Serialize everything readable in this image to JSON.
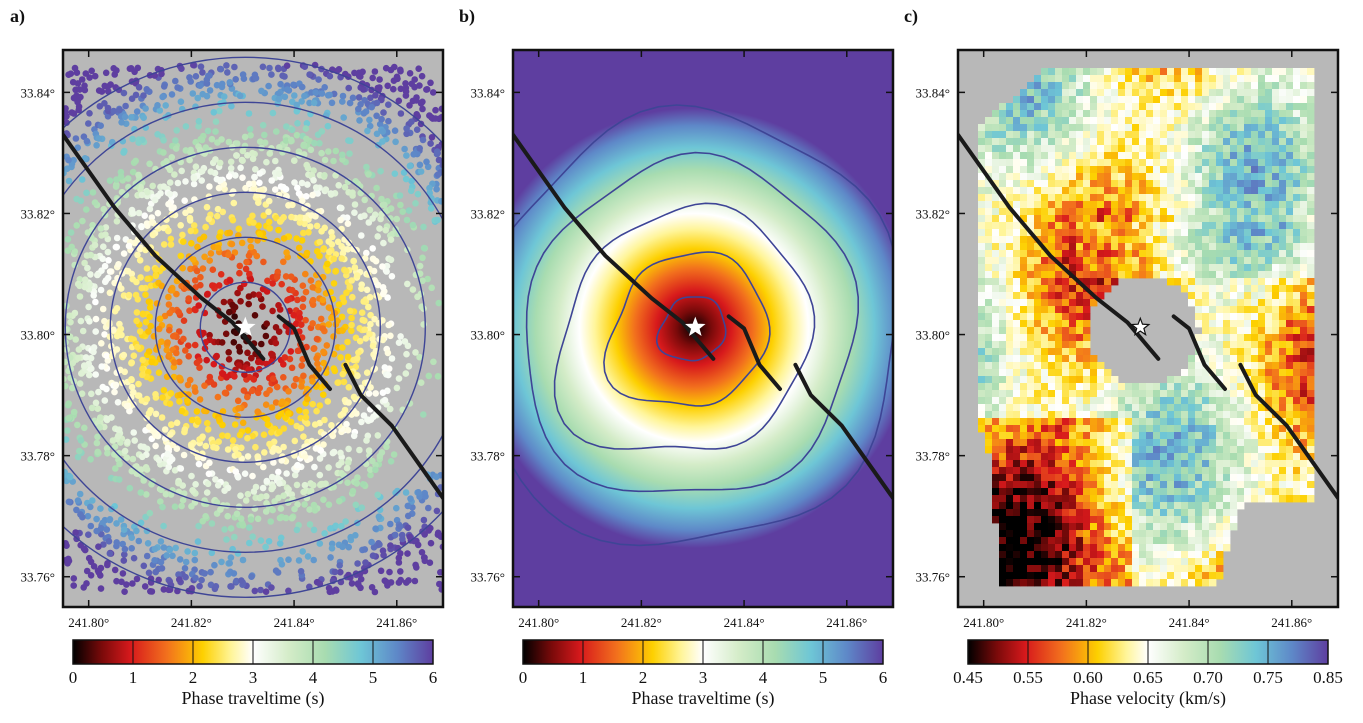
{
  "chart_data": [
    {
      "panel_label": "a)",
      "type": "scatter",
      "description_kind": "station phase traveltime picks",
      "x_ticks": [
        "241.80°",
        "241.82°",
        "241.84°",
        "241.86°"
      ],
      "y_ticks": [
        "33.76°",
        "33.78°",
        "33.80°",
        "33.82°",
        "33.84°"
      ],
      "x_tick_values": [
        241.8,
        241.82,
        241.84,
        241.86
      ],
      "y_tick_values": [
        33.76,
        33.78,
        33.8,
        33.82,
        33.84
      ],
      "xlim": [
        241.795,
        241.869
      ],
      "ylim": [
        33.755,
        33.847
      ],
      "source_lon": 241.8305,
      "source_lat": 33.8012,
      "circle_radii_s": [
        1,
        2,
        3,
        4,
        5,
        6
      ],
      "colorbar": {
        "label": "Phase traveltime (s)",
        "ticks": [
          "0",
          "1",
          "2",
          "3",
          "4",
          "5",
          "6"
        ],
        "min": 0,
        "max": 6
      }
    },
    {
      "panel_label": "b)",
      "type": "heatmap",
      "description_kind": "interpolated phase traveltime field",
      "x_ticks": [
        "241.80°",
        "241.82°",
        "241.84°",
        "241.86°"
      ],
      "y_ticks": [
        "33.76°",
        "33.78°",
        "33.80°",
        "33.82°",
        "33.84°"
      ],
      "x_tick_values": [
        241.8,
        241.82,
        241.84,
        241.86
      ],
      "y_tick_values": [
        33.76,
        33.78,
        33.8,
        33.82,
        33.84
      ],
      "xlim": [
        241.795,
        241.869
      ],
      "ylim": [
        33.755,
        33.847
      ],
      "source_lon": 241.8305,
      "source_lat": 33.8012,
      "contour_levels_s": [
        0.5,
        1.5,
        2.5,
        3.5,
        4.5
      ],
      "colorbar": {
        "label": "Phase traveltime (s)",
        "ticks": [
          "0",
          "1",
          "2",
          "3",
          "4",
          "5",
          "6"
        ],
        "min": 0,
        "max": 6
      }
    },
    {
      "panel_label": "c)",
      "type": "heatmap",
      "description_kind": "phase velocity map",
      "x_ticks": [
        "241.80°",
        "241.82°",
        "241.84°",
        "241.86°"
      ],
      "y_ticks": [
        "33.76°",
        "33.78°",
        "33.80°",
        "33.82°",
        "33.84°"
      ],
      "x_tick_values": [
        241.8,
        241.82,
        241.84,
        241.86
      ],
      "y_tick_values": [
        33.76,
        33.78,
        33.8,
        33.82,
        33.84
      ],
      "xlim": [
        241.795,
        241.869
      ],
      "ylim": [
        33.755,
        33.847
      ],
      "source_lon": 241.8305,
      "source_lat": 33.8012,
      "colorbar": {
        "label": "Phase velocity (km/s)",
        "ticks": [
          "0.45",
          "0.55",
          "0.60",
          "0.65",
          "0.70",
          "0.75",
          "0.85"
        ],
        "min": 0.45,
        "max": 0.85
      }
    }
  ],
  "fault_traces": [
    [
      [
        241.795,
        33.833
      ],
      [
        241.805,
        33.821
      ],
      [
        241.813,
        33.813
      ],
      [
        241.822,
        33.806
      ],
      [
        241.828,
        33.802
      ],
      [
        241.834,
        33.796
      ]
    ],
    [
      [
        241.837,
        33.803
      ],
      [
        241.84,
        33.801
      ],
      [
        241.843,
        33.795
      ],
      [
        241.847,
        33.791
      ]
    ],
    [
      [
        241.85,
        33.795
      ],
      [
        241.853,
        33.79
      ],
      [
        241.859,
        33.785
      ],
      [
        241.864,
        33.779
      ],
      [
        241.869,
        33.773
      ]
    ]
  ],
  "colors": {
    "map_background": "#b8b8b8",
    "contour_line": "#3e4596",
    "fault_line": "#1a1a1a",
    "traveltime_scale": [
      "#000000",
      "#7a0a0a",
      "#d7191c",
      "#f2701d",
      "#fdd000",
      "#fff59a",
      "#ffffff",
      "#d4ecc8",
      "#a8dcb0",
      "#6ec6d6",
      "#5e88c8",
      "#5e3ea0"
    ],
    "velocity_scale": [
      "#000000",
      "#7a0a0a",
      "#d7191c",
      "#f2701d",
      "#fdd000",
      "#fff59a",
      "#ffffff",
      "#d4ecc8",
      "#a8dcb0",
      "#6ec6d6",
      "#5e88c8",
      "#5e3ea0"
    ]
  },
  "icons": {
    "source_marker": "star-icon"
  }
}
